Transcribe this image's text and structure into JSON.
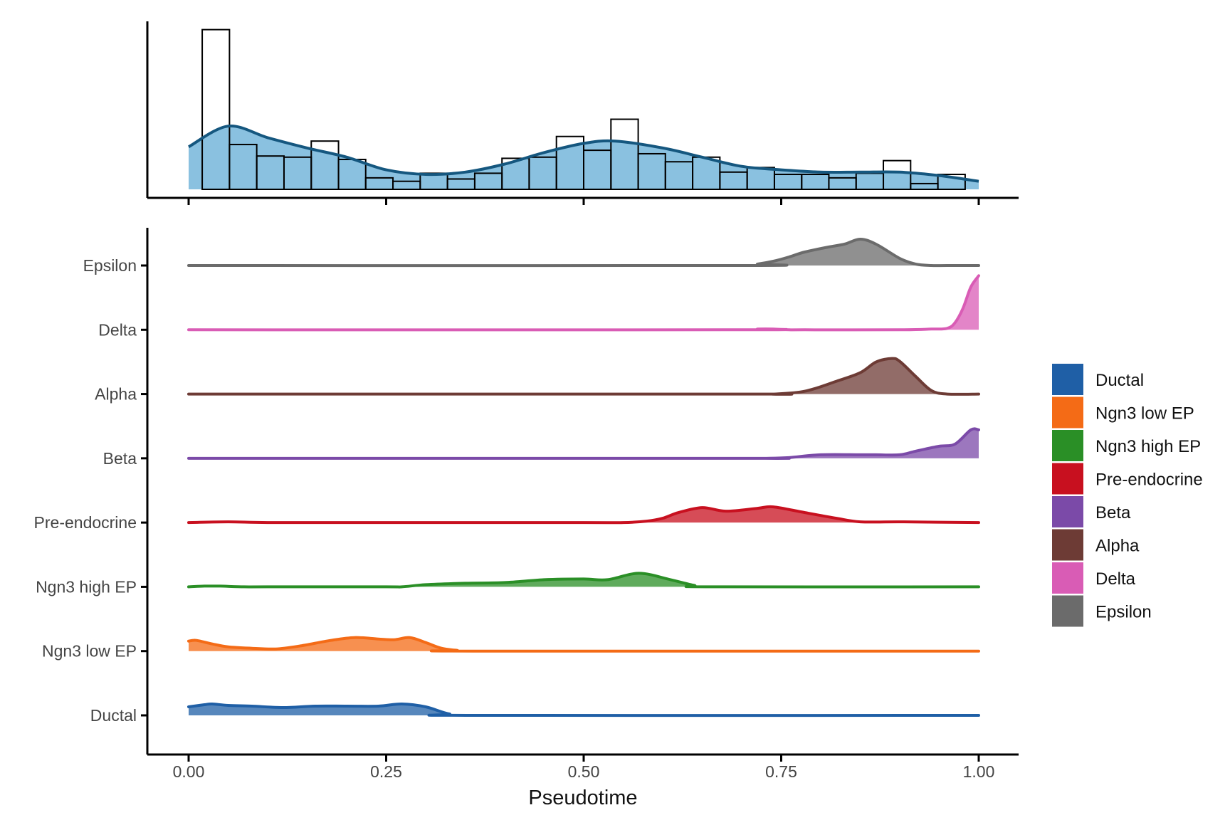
{
  "chart_data": [
    {
      "type": "histogram",
      "panel": "top",
      "title": "",
      "xlabel": "",
      "ylabel": "",
      "xlim": [
        0,
        1
      ],
      "ylim": [
        0,
        140
      ],
      "bins": [
        {
          "x0": 0.0172,
          "x1": 0.0517,
          "count": 139
        },
        {
          "x0": 0.0517,
          "x1": 0.0862,
          "count": 39
        },
        {
          "x0": 0.0862,
          "x1": 0.1207,
          "count": 29
        },
        {
          "x0": 0.1207,
          "x1": 0.1552,
          "count": 28
        },
        {
          "x0": 0.1552,
          "x1": 0.1897,
          "count": 42
        },
        {
          "x0": 0.1897,
          "x1": 0.2241,
          "count": 26
        },
        {
          "x0": 0.2241,
          "x1": 0.2586,
          "count": 10
        },
        {
          "x0": 0.2586,
          "x1": 0.2931,
          "count": 7
        },
        {
          "x0": 0.2931,
          "x1": 0.3276,
          "count": 14
        },
        {
          "x0": 0.3276,
          "x1": 0.3621,
          "count": 9
        },
        {
          "x0": 0.3621,
          "x1": 0.3966,
          "count": 14
        },
        {
          "x0": 0.3966,
          "x1": 0.431,
          "count": 27
        },
        {
          "x0": 0.431,
          "x1": 0.4655,
          "count": 28
        },
        {
          "x0": 0.4655,
          "x1": 0.5,
          "count": 46
        },
        {
          "x0": 0.5,
          "x1": 0.5345,
          "count": 34
        },
        {
          "x0": 0.5345,
          "x1": 0.569,
          "count": 61
        },
        {
          "x0": 0.569,
          "x1": 0.6034,
          "count": 31
        },
        {
          "x0": 0.6034,
          "x1": 0.6379,
          "count": 24
        },
        {
          "x0": 0.6379,
          "x1": 0.6724,
          "count": 28
        },
        {
          "x0": 0.6724,
          "x1": 0.7069,
          "count": 15
        },
        {
          "x0": 0.7069,
          "x1": 0.7414,
          "count": 19
        },
        {
          "x0": 0.7414,
          "x1": 0.7759,
          "count": 13
        },
        {
          "x0": 0.7759,
          "x1": 0.8103,
          "count": 13
        },
        {
          "x0": 0.8103,
          "x1": 0.8448,
          "count": 10
        },
        {
          "x0": 0.8448,
          "x1": 0.8793,
          "count": 14
        },
        {
          "x0": 0.8793,
          "x1": 0.9138,
          "count": 25
        },
        {
          "x0": 0.9138,
          "x1": 0.9483,
          "count": 5
        },
        {
          "x0": 0.9483,
          "x1": 0.9828,
          "count": 13
        }
      ],
      "density_curve": {
        "x": [
          0,
          0.05,
          0.1,
          0.15,
          0.2,
          0.25,
          0.3,
          0.35,
          0.4,
          0.45,
          0.5,
          0.54,
          0.6,
          0.65,
          0.7,
          0.75,
          0.8,
          0.85,
          0.9,
          0.95,
          1.0
        ],
        "y": [
          37,
          55,
          45,
          36,
          28,
          17,
          13,
          15,
          22,
          32,
          40,
          42,
          36,
          28,
          20,
          17,
          15,
          15,
          15,
          12,
          7
        ]
      },
      "colors": {
        "fill": "#8ac1e0",
        "line": "#15577f",
        "bar_outline": "#000000"
      }
    },
    {
      "type": "ridgeline",
      "panel": "bottom",
      "title": "",
      "xlabel": "Pseudotime",
      "ylabel": "",
      "xlim": [
        0,
        1
      ],
      "x_ticks": [
        "0.00",
        "0.25",
        "0.50",
        "0.75",
        "1.00"
      ],
      "x_tick_values": [
        0,
        0.25,
        0.5,
        0.75,
        1
      ],
      "categories": [
        "Ductal",
        "Ngn3 low EP",
        "Ngn3 high EP",
        "Pre-endocrine",
        "Beta",
        "Alpha",
        "Delta",
        "Epsilon"
      ],
      "series": [
        {
          "name": "Ductal",
          "color": "#1f5fa6",
          "x": [
            0,
            0.02,
            0.03,
            0.05,
            0.08,
            0.12,
            0.16,
            0.2,
            0.24,
            0.27,
            0.3,
            0.33,
            0.36,
            1.0
          ],
          "y": [
            12,
            15,
            16,
            14,
            13,
            11,
            13,
            13,
            13,
            16,
            12,
            2,
            0,
            0
          ]
        },
        {
          "name": "Ngn3 low EP",
          "color": "#f46b16",
          "x": [
            0,
            0.01,
            0.03,
            0.05,
            0.08,
            0.11,
            0.14,
            0.18,
            0.21,
            0.24,
            0.26,
            0.28,
            0.3,
            0.32,
            0.34,
            0.36,
            1.0
          ],
          "y": [
            14,
            15,
            10,
            6,
            4,
            3,
            7,
            15,
            19,
            17,
            16,
            19,
            12,
            4,
            1,
            0,
            0
          ]
        },
        {
          "name": "Ngn3 high EP",
          "color": "#2a8f26",
          "x": [
            0,
            0.02,
            0.04,
            0.07,
            0.1,
            0.25,
            0.27,
            0.3,
            0.35,
            0.4,
            0.45,
            0.5,
            0.53,
            0.57,
            0.61,
            0.64,
            0.66,
            1.0
          ],
          "y": [
            0,
            1,
            1,
            0,
            0,
            0,
            0,
            3,
            5,
            6,
            10,
            11,
            10,
            19,
            10,
            2,
            0,
            0
          ]
        },
        {
          "name": "Pre-endocrine",
          "color": "#c8101f",
          "x": [
            0,
            0.05,
            0.1,
            0.2,
            0.5,
            0.55,
            0.58,
            0.6,
            0.62,
            0.65,
            0.68,
            0.72,
            0.74,
            0.78,
            0.82,
            0.85,
            0.9,
            1.0
          ],
          "y": [
            0,
            1,
            0,
            0,
            0,
            0,
            2,
            6,
            14,
            21,
            16,
            20,
            22,
            14,
            6,
            1,
            1,
            0
          ]
        },
        {
          "name": "Beta",
          "color": "#7b4aa8",
          "x": [
            0,
            0.7,
            0.73,
            0.76,
            0.8,
            0.85,
            0.87,
            0.9,
            0.92,
            0.95,
            0.97,
            0.99,
            1.0
          ],
          "y": [
            0,
            0,
            0,
            1,
            5,
            5,
            5,
            5,
            10,
            17,
            20,
            40,
            40
          ]
        },
        {
          "name": "Alpha",
          "color": "#6d3b35",
          "x": [
            0,
            0.7,
            0.74,
            0.78,
            0.82,
            0.85,
            0.87,
            0.89,
            0.9,
            0.92,
            0.94,
            0.96,
            1.0
          ],
          "y": [
            0,
            0,
            0,
            4,
            18,
            30,
            45,
            50,
            46,
            25,
            5,
            0,
            0
          ]
        },
        {
          "name": "Delta",
          "color": "#d95cb5",
          "x": [
            0,
            0.7,
            0.72,
            0.74,
            0.76,
            0.78,
            0.9,
            0.94,
            0.96,
            0.97,
            0.98,
            0.99,
            1.0
          ],
          "y": [
            0,
            0,
            1,
            1,
            0,
            0,
            0,
            1,
            2,
            10,
            30,
            60,
            76
          ]
        },
        {
          "name": "Epsilon",
          "color": "#6b6b6b",
          "x": [
            0,
            0.7,
            0.72,
            0.74,
            0.76,
            0.78,
            0.81,
            0.83,
            0.85,
            0.87,
            0.9,
            0.92,
            0.94,
            0.96,
            1.0
          ],
          "y": [
            0,
            0,
            2,
            6,
            12,
            19,
            26,
            30,
            37,
            30,
            10,
            2,
            0,
            0,
            0
          ]
        }
      ],
      "legend": {
        "position": "right",
        "items": [
          {
            "label": "Ductal",
            "color": "#1f5fa6"
          },
          {
            "label": "Ngn3 low EP",
            "color": "#f46b16"
          },
          {
            "label": "Ngn3 high EP",
            "color": "#2a8f26"
          },
          {
            "label": "Pre-endocrine",
            "color": "#c8101f"
          },
          {
            "label": "Beta",
            "color": "#7b4aa8"
          },
          {
            "label": "Alpha",
            "color": "#6d3b35"
          },
          {
            "label": "Delta",
            "color": "#d95cb5"
          },
          {
            "label": "Epsilon",
            "color": "#6b6b6b"
          }
        ]
      }
    }
  ]
}
